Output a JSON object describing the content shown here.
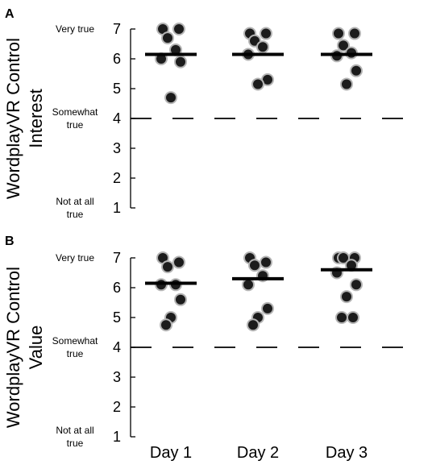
{
  "chart_data": [
    {
      "panel_label": "A",
      "type": "scatter",
      "ylabel_lines": [
        "WordplayVR Control",
        "Interest"
      ],
      "ylim": [
        1,
        7
      ],
      "yticks": [
        1,
        2,
        3,
        4,
        5,
        6,
        7
      ],
      "anchors": [
        {
          "y": 7,
          "lines": [
            "Very true"
          ]
        },
        {
          "y": 4,
          "lines": [
            "Somewhat",
            "true"
          ]
        },
        {
          "y": 1,
          "lines": [
            "Not at all",
            "true"
          ]
        }
      ],
      "reference_line": 4,
      "categories": [
        "Day 1",
        "Day 2",
        "Day 3"
      ],
      "series": [
        {
          "category": "Day 1",
          "mean": 6.15,
          "points": [
            7.0,
            7.0,
            6.7,
            6.3,
            6.0,
            5.9,
            4.7
          ]
        },
        {
          "category": "Day 2",
          "mean": 6.15,
          "points": [
            6.85,
            6.85,
            6.6,
            6.4,
            6.15,
            5.3,
            5.15
          ]
        },
        {
          "category": "Day 3",
          "mean": 6.15,
          "points": [
            6.85,
            6.85,
            6.45,
            6.2,
            6.1,
            5.6,
            5.15
          ]
        }
      ]
    },
    {
      "panel_label": "B",
      "type": "scatter",
      "ylabel_lines": [
        "WordplayVR Control",
        "Value"
      ],
      "ylim": [
        1,
        7
      ],
      "yticks": [
        1,
        2,
        3,
        4,
        5,
        6,
        7
      ],
      "anchors": [
        {
          "y": 7,
          "lines": [
            "Very true"
          ]
        },
        {
          "y": 4,
          "lines": [
            "Somewhat",
            "true"
          ]
        },
        {
          "y": 1,
          "lines": [
            "Not at all",
            "true"
          ]
        }
      ],
      "reference_line": 4,
      "categories": [
        "Day 1",
        "Day 2",
        "Day 3"
      ],
      "series": [
        {
          "category": "Day 1",
          "mean": 6.15,
          "points": [
            7.0,
            6.85,
            6.7,
            6.1,
            6.1,
            5.6,
            5.0,
            4.75
          ]
        },
        {
          "category": "Day 2",
          "mean": 6.3,
          "points": [
            7.0,
            6.85,
            6.75,
            6.4,
            6.1,
            5.3,
            5.0,
            4.75
          ]
        },
        {
          "category": "Day 3",
          "mean": 6.6,
          "points": [
            7.0,
            7.0,
            7.0,
            6.75,
            6.5,
            6.1,
            5.7,
            5.0,
            5.0
          ]
        }
      ]
    }
  ],
  "colors": {
    "point_fill": "#1c1c1c",
    "point_edge": "#b4b4b4",
    "mean_line": "#000000",
    "reference_line": "#000000"
  }
}
